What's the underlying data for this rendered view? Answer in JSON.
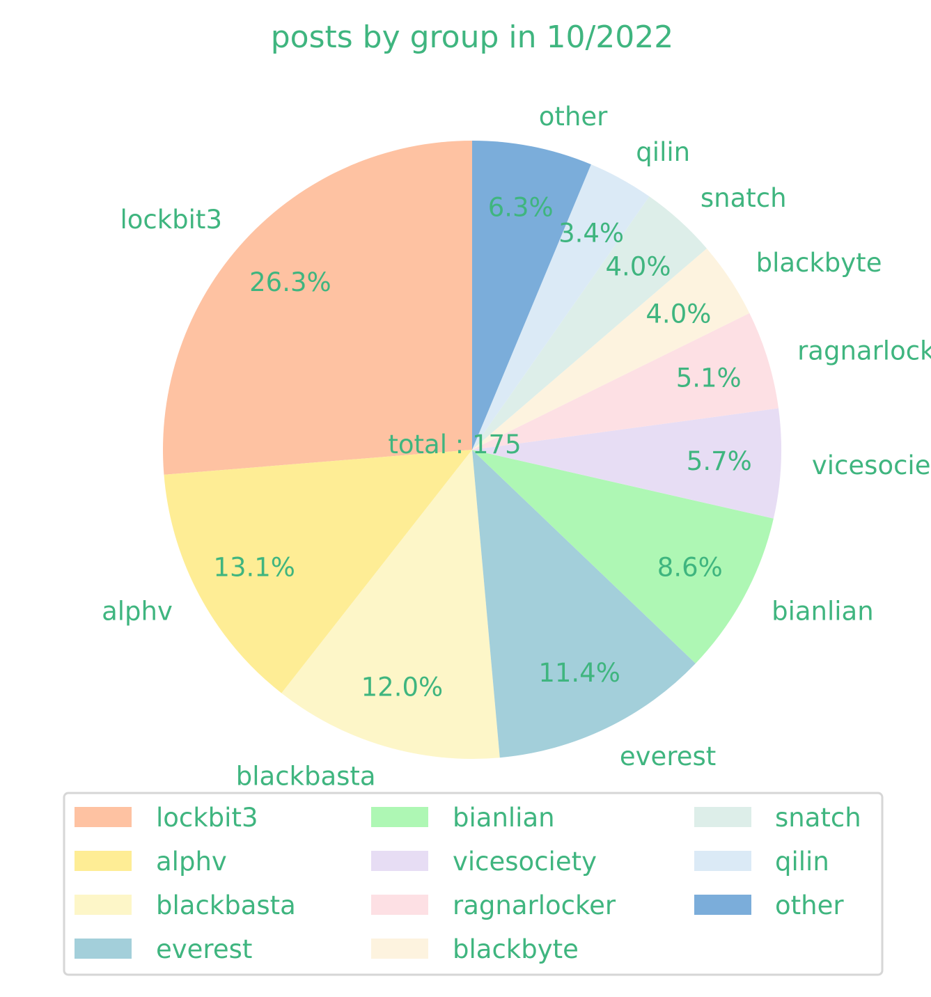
{
  "chart_data": {
    "type": "pie",
    "title": "posts by group in 10/2022",
    "center_label": "total : 175",
    "text_color": "#3fb57f",
    "slices": [
      {
        "label": "lockbit3",
        "pct_label": "26.3%",
        "value": 46,
        "color": "#fec2a2"
      },
      {
        "label": "alphv",
        "pct_label": "13.1%",
        "value": 23,
        "color": "#feed95"
      },
      {
        "label": "blackbasta",
        "pct_label": "12.0%",
        "value": 21,
        "color": "#fdf6c8"
      },
      {
        "label": "everest",
        "pct_label": "11.4%",
        "value": 20,
        "color": "#a3cfda"
      },
      {
        "label": "bianlian",
        "pct_label": "8.6%",
        "value": 15,
        "color": "#aef7b4"
      },
      {
        "label": "vicesociety",
        "pct_label": "5.7%",
        "value": 10,
        "color": "#e7ddf4"
      },
      {
        "label": "ragnarlocker",
        "pct_label": "5.1%",
        "value": 9,
        "color": "#fde0e4"
      },
      {
        "label": "blackbyte",
        "pct_label": "4.0%",
        "value": 7,
        "color": "#fdf3df"
      },
      {
        "label": "snatch",
        "pct_label": "4.0%",
        "value": 7,
        "color": "#ddeee9"
      },
      {
        "label": "qilin",
        "pct_label": "3.4%",
        "value": 6,
        "color": "#dbeaf6"
      },
      {
        "label": "other",
        "pct_label": "6.3%",
        "value": 11,
        "color": "#7badda"
      }
    ],
    "start_angle_deg": 90,
    "direction": "counterclockwise",
    "legend_placement": "bottom",
    "legend_columns": 3
  }
}
